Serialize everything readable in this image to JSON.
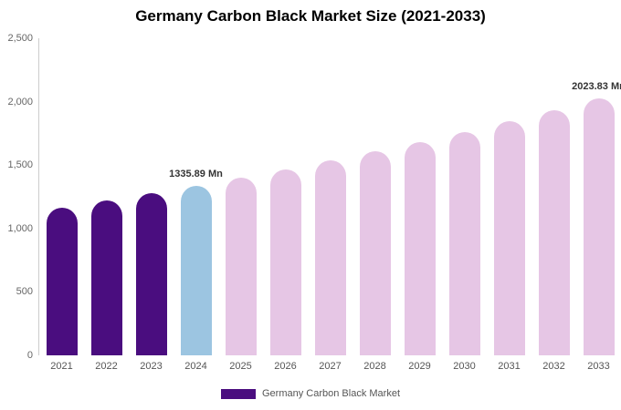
{
  "title": "Germany Carbon Black Market Size (2021-2033)",
  "legend": {
    "label": "Germany Carbon Black Market",
    "color": "#4a0d7f"
  },
  "colors": {
    "historical": "#4a0d7f",
    "current_year": "#9cc5e1",
    "forecast": "#e6c6e5",
    "axis_line": "#cccccc"
  },
  "chart_data": {
    "type": "bar",
    "title": "Germany Carbon Black Market Size (2021-2033)",
    "categories": [
      "2021",
      "2022",
      "2023",
      "2024",
      "2025",
      "2026",
      "2027",
      "2028",
      "2029",
      "2030",
      "2031",
      "2032",
      "2033"
    ],
    "values": [
      1163,
      1218,
      1276,
      1335.89,
      1399,
      1465,
      1534,
      1606,
      1682,
      1762,
      1845,
      1932,
      2023.83
    ],
    "unit": "Mn",
    "bar_colors": [
      "#4a0d7f",
      "#4a0d7f",
      "#4a0d7f",
      "#9cc5e1",
      "#e6c6e5",
      "#e6c6e5",
      "#e6c6e5",
      "#e6c6e5",
      "#e6c6e5",
      "#e6c6e5",
      "#e6c6e5",
      "#e6c6e5",
      "#e6c6e5"
    ],
    "annotations": [
      {
        "index": 3,
        "text": "1335.89 Mn"
      },
      {
        "index": 12,
        "text": "2023.83 Mn"
      }
    ],
    "xlabel": "",
    "ylabel": "",
    "ylim": [
      0,
      2500
    ],
    "yticks": [
      {
        "value": 0,
        "label": "0"
      },
      {
        "value": 500,
        "label": "500"
      },
      {
        "value": 1000,
        "label": "1,000"
      },
      {
        "value": 1500,
        "label": "1,500"
      },
      {
        "value": 2000,
        "label": "2,000"
      },
      {
        "value": 2500,
        "label": "2,500"
      }
    ],
    "grid": false,
    "legend_position": "bottom",
    "legend_entries": [
      "Germany Carbon Black Market"
    ]
  }
}
